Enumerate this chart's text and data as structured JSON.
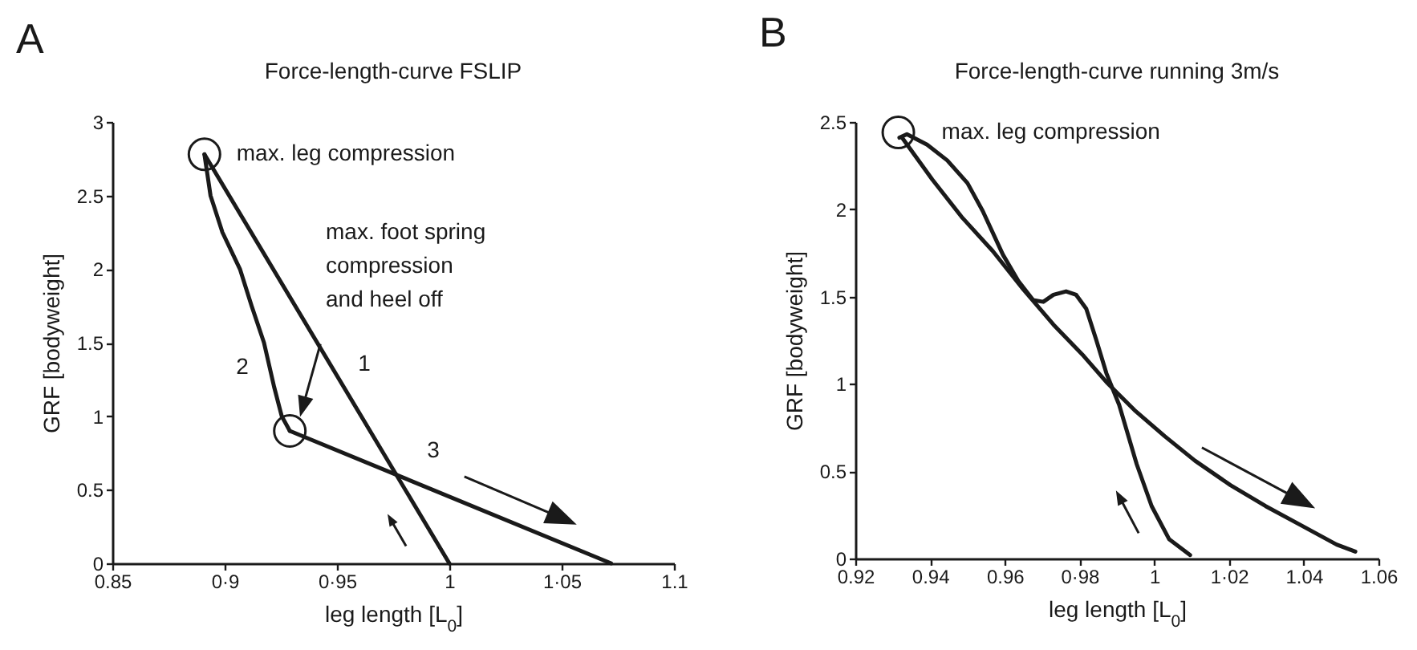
{
  "chart_data": [
    {
      "type": "line",
      "title": "Force-length-curve FSLIP",
      "xlabel": "leg length [L$_{0}$]",
      "ylabel": "GRF [bodyweight]",
      "series": [
        {
          "color": "#1a1a1a",
          "x": [
            1.0,
            0.891
          ],
          "values": [
            0,
            2.78
          ]
        },
        {
          "color": "#1a1a1a",
          "x": [
            0.891,
            0.8937,
            0.899,
            0.9068,
            0.912,
            0.9175,
            0.922,
            0.9254,
            0.929
          ],
          "values": [
            2.78,
            2.5,
            2.25,
            2.0,
            1.75,
            1.5,
            1.2,
            1.0,
            0.9
          ]
        },
        {
          "color": "#1a1a1a",
          "x": [
            0.929,
            1.072
          ],
          "values": [
            0.9,
            0
          ]
        }
      ],
      "annotations": [
        "A",
        {
          "text": "max. leg compression",
          "x": 0.891,
          "y": 2.78
        },
        "max. foot spring\ncompression\nand heel off",
        "1",
        "2",
        "3"
      ],
      "xlim": [
        0.85,
        1.1
      ],
      "xticks": [
        0.85,
        {
          "value": 0.9,
          "label": "0·9"
        },
        {
          "value": 0.95,
          "label": "0·95"
        },
        1,
        {
          "value": 1.05,
          "label": "1·05"
        },
        1.1
      ],
      "ylim": [
        0,
        3
      ],
      "yticks": [
        0,
        0.5,
        1,
        1.5,
        2,
        2.5,
        3
      ],
      "grid": false,
      "legend": false
    },
    {
      "type": "line",
      "title": "Force-length-curve running 3m/s",
      "xlabel": "leg length [L$_{0}$]",
      "ylabel": "GRF [bodyweight]",
      "series": [
        {
          "color": "#1a1a1a",
          "x": [
            1.0096,
            1.004,
            0.9993,
            0.9953,
            0.9906,
            0.9872,
            0.9845,
            0.9818,
            0.9791,
            0.9764,
            0.973,
            0.9703,
            0.9676,
            0.9636,
            0.9595,
            0.9541,
            0.95,
            0.9446,
            0.9392,
            0.9338,
            0.9318
          ],
          "values": [
            0.02,
            0.11,
            0.3,
            0.54,
            0.88,
            1.06,
            1.25,
            1.43,
            1.51,
            1.53,
            1.51,
            1.47,
            1.48,
            1.59,
            1.74,
            1.99,
            2.15,
            2.28,
            2.37,
            2.43,
            2.41
          ]
        },
        {
          "color": "#1a1a1a",
          "x": [
            0.9325,
            0.9406,
            0.9487,
            0.9568,
            0.965,
            0.973,
            0.9811,
            0.9872,
            0.9947,
            1.0028,
            1.0109,
            1.0204,
            1.0298,
            1.0393,
            1.0488,
            1.0538
          ],
          "values": [
            2.41,
            2.17,
            1.95,
            1.76,
            1.54,
            1.34,
            1.16,
            1.01,
            0.85,
            0.7,
            0.56,
            0.42,
            0.3,
            0.19,
            0.08,
            0.04
          ]
        }
      ],
      "annotations": [
        "B",
        {
          "text": "max. leg compression",
          "x": 0.9315,
          "y": 2.44
        }
      ],
      "xlim": [
        0.92,
        1.06
      ],
      "xticks": [
        0.92,
        0.94,
        0.96,
        {
          "value": 0.98,
          "label": "0·98"
        },
        1,
        {
          "value": 1.02,
          "label": "1·02"
        },
        1.04,
        1.06
      ],
      "ylim": [
        0,
        2.5
      ],
      "yticks": [
        0,
        0.5,
        1,
        1.5,
        2,
        2.5
      ],
      "grid": false,
      "legend": false
    }
  ]
}
